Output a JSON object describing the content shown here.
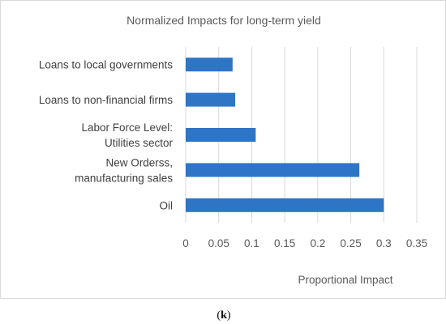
{
  "chart_data": {
    "type": "bar",
    "orientation": "horizontal",
    "title": "Normalized Impacts for long-term yield",
    "xlabel": "Proportional Impact",
    "ylabel": "",
    "categories": [
      [
        "Loans to local governments"
      ],
      [
        "Loans to non-financial firms"
      ],
      [
        "Labor Force Level:",
        "Utilities sector"
      ],
      [
        "New Orderss,",
        "manufacturing sales"
      ],
      [
        "Oil"
      ]
    ],
    "values": [
      0.071,
      0.075,
      0.106,
      0.263,
      0.3
    ],
    "xlim": [
      0,
      0.35
    ],
    "xticks": [
      "0",
      "0.05",
      "0.1",
      "0.15",
      "0.2",
      "0.25",
      "0.3",
      "0.35"
    ],
    "grid": "vertical",
    "bar_color": "#2E75C6",
    "grid_color": "#D9D9D9"
  },
  "caption": {
    "open": "(",
    "letter": "k",
    "close": ")"
  }
}
